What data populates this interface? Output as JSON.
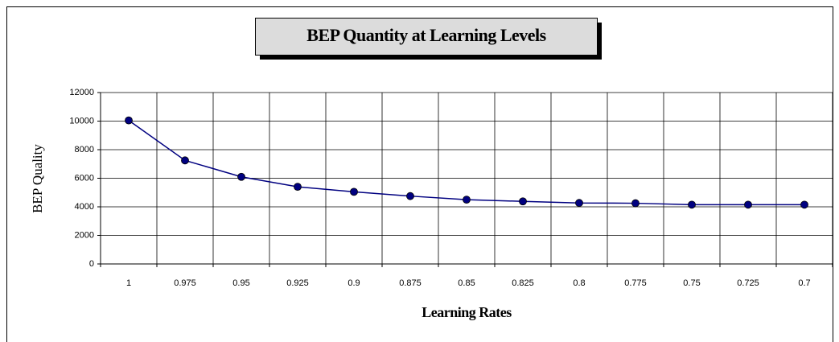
{
  "chart_data": {
    "type": "line",
    "title": "BEP Quantity at Learning Levels",
    "xlabel": "Learning Rates",
    "ylabel": "BEP Quality",
    "categories": [
      "1",
      "0.975",
      "0.95",
      "0.925",
      "0.9",
      "0.875",
      "0.85",
      "0.825",
      "0.8",
      "0.775",
      "0.75",
      "0.725",
      "0.7"
    ],
    "series": [
      {
        "name": "BEP Quantity",
        "color": "#000080",
        "values": [
          10050,
          7250,
          6100,
          5400,
          5050,
          4750,
          4500,
          4380,
          4270,
          4250,
          4150,
          4150,
          4150
        ]
      }
    ],
    "ylim": [
      0,
      12000
    ],
    "yticks": [
      0,
      2000,
      4000,
      6000,
      8000,
      10000,
      12000
    ],
    "grid": true
  }
}
